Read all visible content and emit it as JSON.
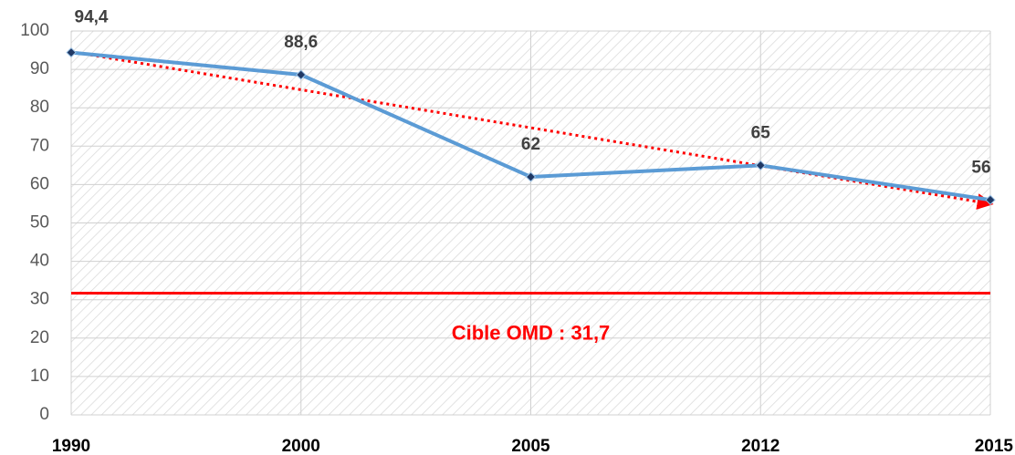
{
  "chart_data": {
    "type": "line",
    "categories": [
      "1990",
      "2000",
      "2005",
      "2012",
      "2015"
    ],
    "series": [
      {
        "color": "#5b9bd5",
        "values": [
          94.4,
          88.6,
          62,
          65,
          56
        ],
        "value_labels": [
          "94,4",
          "88,6",
          "62",
          "65",
          "56"
        ]
      }
    ],
    "trend": {
      "color": "#ff0000",
      "values": [
        94.6,
        55
      ]
    },
    "target": {
      "value": 31.7,
      "label": "Cible OMD : 31,7",
      "color": "#ff0000"
    },
    "ylim": [
      0,
      100
    ],
    "yticks": [
      0,
      10,
      20,
      30,
      40,
      50,
      60,
      70,
      80,
      90,
      100
    ],
    "grid": true
  }
}
